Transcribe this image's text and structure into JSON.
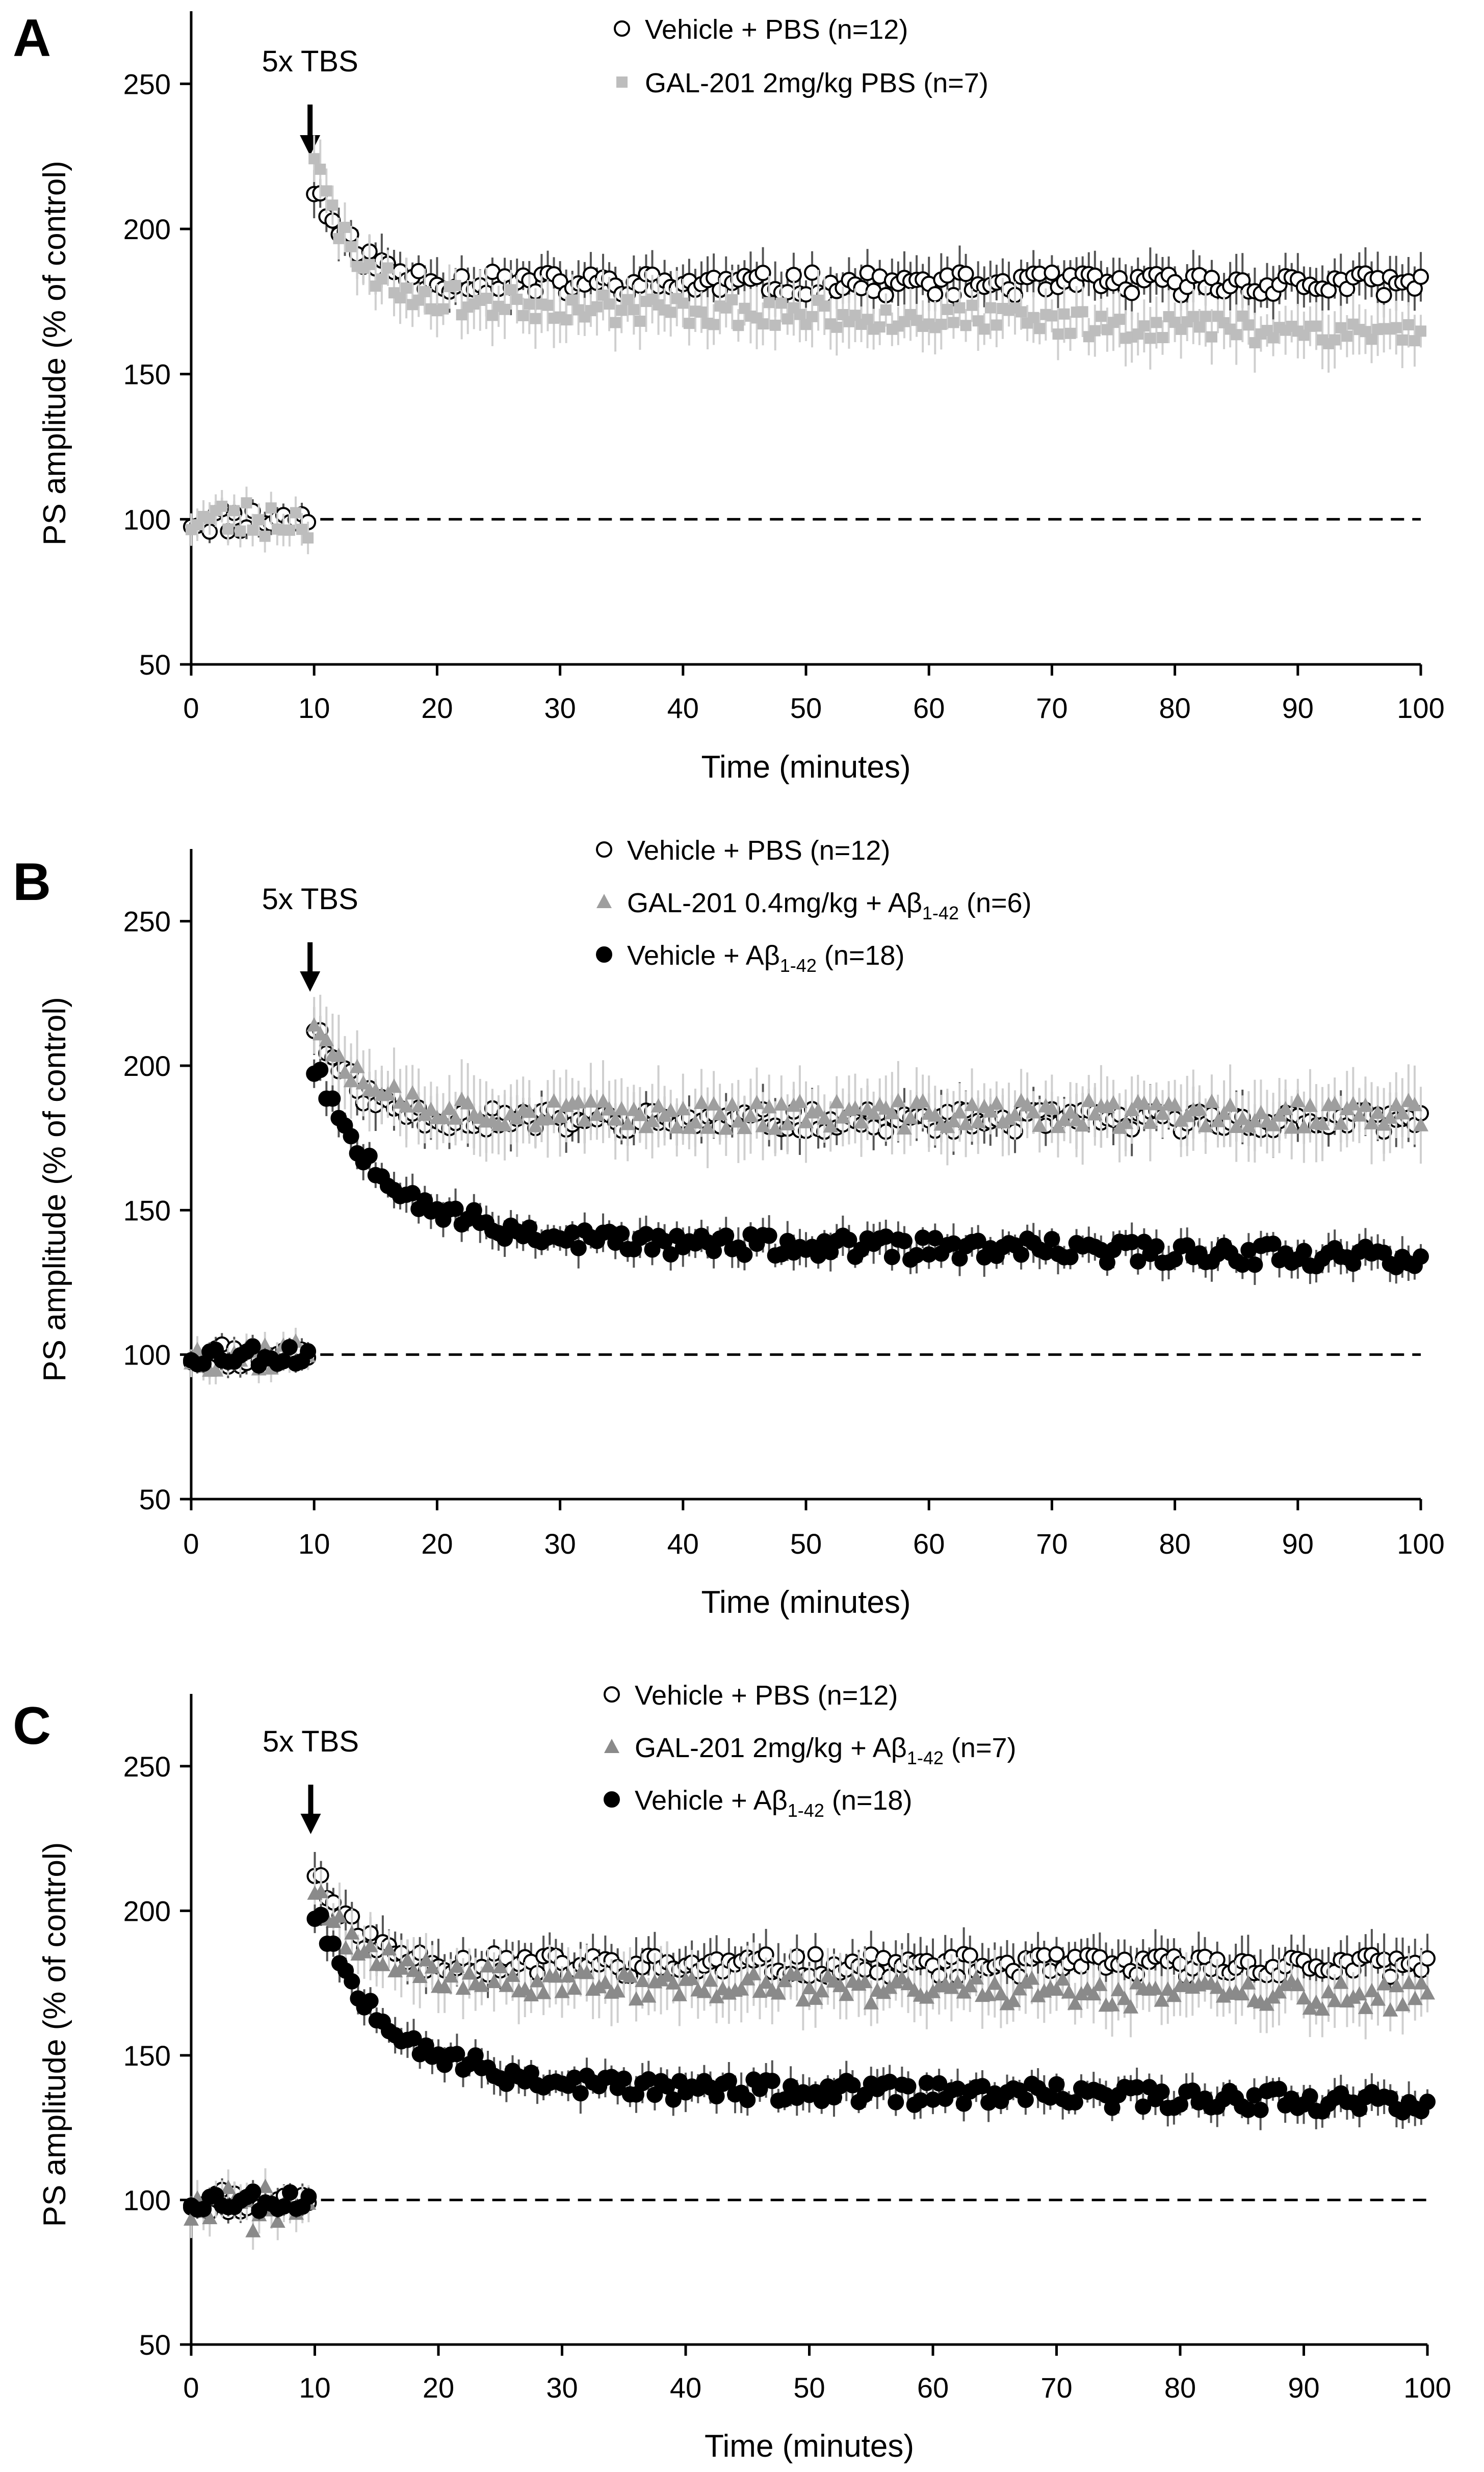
{
  "figure": {
    "legend_prefix": "Vehicle + ",
    "arrow_label": "5x TBS"
  },
  "chart_data": [
    {
      "panel_label": "A",
      "type": "scatter",
      "title": "",
      "xlabel": "Time (minutes)",
      "ylabel": "PS amplitude (% of control)",
      "xlim": [
        0,
        100
      ],
      "ylim": [
        50,
        275
      ],
      "xticks": [
        0,
        10,
        20,
        30,
        40,
        50,
        60,
        70,
        80,
        90,
        100
      ],
      "yticks": [
        50,
        100,
        150,
        200,
        250
      ],
      "baseline": 100,
      "annotation": {
        "text": "5x TBS",
        "x": 10
      },
      "series": [
        {
          "name": "Vehicle + PBS (n=12)",
          "marker": "open-circle",
          "color": "#000000",
          "seed": 11,
          "profile": {
            "base_mean": 100,
            "base_noise": 5,
            "peak": 215,
            "plateau": 181,
            "tau": 3.2,
            "drift": 0,
            "noise": 4,
            "err": 8
          }
        },
        {
          "name": "GAL-201 2mg/kg PBS (n=7)",
          "marker": "square",
          "color": "#bdbdbd",
          "seed": 23,
          "profile": {
            "base_mean": 100,
            "base_noise": 7,
            "peak": 225,
            "plateau": 176,
            "tau": 3.0,
            "drift": -12,
            "noise": 5,
            "err": 9
          }
        }
      ]
    },
    {
      "panel_label": "B",
      "type": "scatter",
      "title": "",
      "xlabel": "Time (minutes)",
      "ylabel": "PS amplitude (% of control)",
      "xlim": [
        0,
        100
      ],
      "ylim": [
        50,
        275
      ],
      "xticks": [
        0,
        10,
        20,
        30,
        40,
        50,
        60,
        70,
        80,
        90,
        100
      ],
      "yticks": [
        50,
        100,
        150,
        200,
        250
      ],
      "baseline": 100,
      "annotation": {
        "text": "5x TBS",
        "x": 10
      },
      "series": [
        {
          "name": "Vehicle + PBS (n=12)",
          "marker": "open-circle",
          "color": "#000000",
          "seed": 11,
          "profile": {
            "base_mean": 100,
            "base_noise": 5,
            "peak": 215,
            "plateau": 181,
            "tau": 3.2,
            "drift": 0,
            "noise": 4,
            "err": 8
          }
        },
        {
          "name": "GAL-201 0.4mg/kg + Aβ1-42 (n=6)",
          "marker": "triangle",
          "color": "#9e9e9e",
          "seed": 37,
          "profile": {
            "base_mean": 100,
            "base_noise": 6,
            "peak": 218,
            "plateau": 183,
            "tau": 4.0,
            "drift": 0,
            "noise": 5,
            "err": 12
          }
        },
        {
          "name": "Vehicle + Aβ1-42 (n=18)",
          "marker": "filled-circle",
          "color": "#000000",
          "seed": 53,
          "profile": {
            "base_mean": 100,
            "base_noise": 4,
            "peak": 200,
            "plateau": 140,
            "tau": 6.0,
            "drift": -6,
            "noise": 4,
            "err": 6
          }
        }
      ]
    },
    {
      "panel_label": "C",
      "type": "scatter",
      "title": "",
      "xlabel": "Time (minutes)",
      "ylabel": "PS amplitude (% of control)",
      "xlim": [
        0,
        100
      ],
      "ylim": [
        50,
        275
      ],
      "xticks": [
        0,
        10,
        20,
        30,
        40,
        50,
        60,
        70,
        80,
        90,
        100
      ],
      "yticks": [
        50,
        100,
        150,
        200,
        250
      ],
      "baseline": 100,
      "annotation": {
        "text": "5x TBS",
        "x": 10
      },
      "series": [
        {
          "name": "Vehicle + PBS (n=12)",
          "marker": "open-circle",
          "color": "#000000",
          "seed": 11,
          "profile": {
            "base_mean": 100,
            "base_noise": 5,
            "peak": 215,
            "plateau": 181,
            "tau": 3.2,
            "drift": 0,
            "noise": 4,
            "err": 8
          }
        },
        {
          "name": "GAL-201 2mg/kg + Aβ1-42 (n=7)",
          "marker": "triangle",
          "color": "#8a8a8a",
          "seed": 71,
          "profile": {
            "base_mean": 97,
            "base_noise": 8,
            "peak": 205,
            "plateau": 176,
            "tau": 4.0,
            "drift": -6,
            "noise": 5,
            "err": 10
          }
        },
        {
          "name": "Vehicle + Aβ1-42 (n=18)",
          "marker": "filled-circle",
          "color": "#000000",
          "seed": 53,
          "profile": {
            "base_mean": 100,
            "base_noise": 4,
            "peak": 200,
            "plateau": 140,
            "tau": 6.0,
            "drift": -6,
            "noise": 4,
            "err": 6
          }
        }
      ]
    }
  ]
}
